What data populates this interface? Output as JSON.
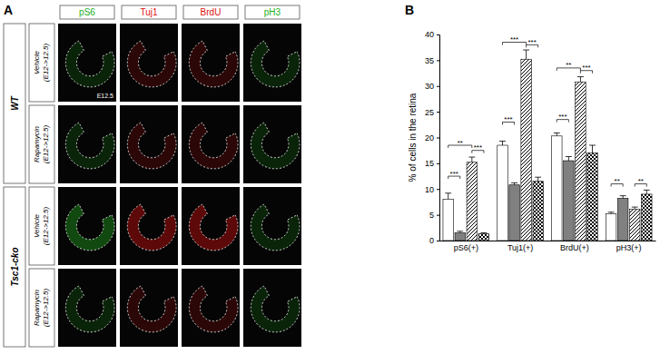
{
  "panel_a": {
    "label": "A",
    "columns": [
      {
        "text": "pS6",
        "color": "#22b022"
      },
      {
        "text": "Tuj1",
        "color": "#e01010"
      },
      {
        "text": "BrdU",
        "color": "#e01010"
      },
      {
        "text": "pH3",
        "color": "#22b022"
      }
    ],
    "groups": [
      {
        "label": "WT",
        "rows": [
          [
            "Vehicle",
            "(E12->12.5)"
          ],
          [
            "Rapamycin",
            "(E12->12.5)"
          ]
        ]
      },
      {
        "label": "Tsc1-cko",
        "rows": [
          [
            "Vehicle",
            "(E12->12.5)"
          ],
          [
            "Rapamycin",
            "(E12->12.5)"
          ]
        ]
      }
    ],
    "stage_label": "E12.5"
  },
  "panel_b": {
    "label": "B"
  },
  "chart_data": {
    "type": "bar",
    "y_label": "% of cells in the retina",
    "categories": [
      "pS6(+)",
      "Tuj1(+)",
      "BrdU(+)",
      "pH3(+)"
    ],
    "series": [
      {
        "color": "#ffffff",
        "values": [
          8.0,
          18.5,
          20.3,
          5.2
        ],
        "errors": [
          1.2,
          0.8,
          0.6,
          0.3
        ]
      },
      {
        "color": "#808080",
        "values": [
          1.5,
          10.8,
          15.5,
          8.2
        ],
        "errors": [
          0.3,
          0.4,
          0.8,
          0.5
        ]
      },
      {
        "color": "#ffffff",
        "values": [
          15.2,
          35.2,
          30.8,
          6.1
        ],
        "errors": [
          1.0,
          1.8,
          1.0,
          0.4
        ]
      },
      {
        "color": "#ffffff",
        "values": [
          1.3,
          11.5,
          17.0,
          9.0
        ],
        "errors": [
          0.2,
          0.8,
          1.5,
          0.8
        ]
      }
    ],
    "ylim": [
      0,
      40
    ],
    "yticks": [
      0,
      5,
      10,
      15,
      20,
      25,
      30,
      35,
      40
    ],
    "grid": false,
    "annotations": [
      {
        "category": 0,
        "from": 0,
        "to": 2,
        "y": 18.5,
        "label": "**"
      },
      {
        "category": 0,
        "from": 0,
        "to": 1,
        "y": 12.5,
        "label": "***"
      },
      {
        "category": 0,
        "from": 2,
        "to": 3,
        "y": 17.5,
        "label": "***"
      },
      {
        "category": 1,
        "from": 0,
        "to": 2,
        "y": 38.5,
        "label": "***"
      },
      {
        "category": 1,
        "from": 0,
        "to": 1,
        "y": 23,
        "label": "***"
      },
      {
        "category": 1,
        "from": 2,
        "to": 3,
        "y": 38,
        "label": "***"
      },
      {
        "category": 2,
        "from": 0,
        "to": 2,
        "y": 33.5,
        "label": "**"
      },
      {
        "category": 2,
        "from": 0,
        "to": 1,
        "y": 23.5,
        "label": "***"
      },
      {
        "category": 2,
        "from": 2,
        "to": 3,
        "y": 33,
        "label": "***"
      },
      {
        "category": 3,
        "from": 0,
        "to": 1,
        "y": 11,
        "label": "**"
      },
      {
        "category": 3,
        "from": 2,
        "to": 3,
        "y": 11,
        "label": "**"
      }
    ]
  }
}
